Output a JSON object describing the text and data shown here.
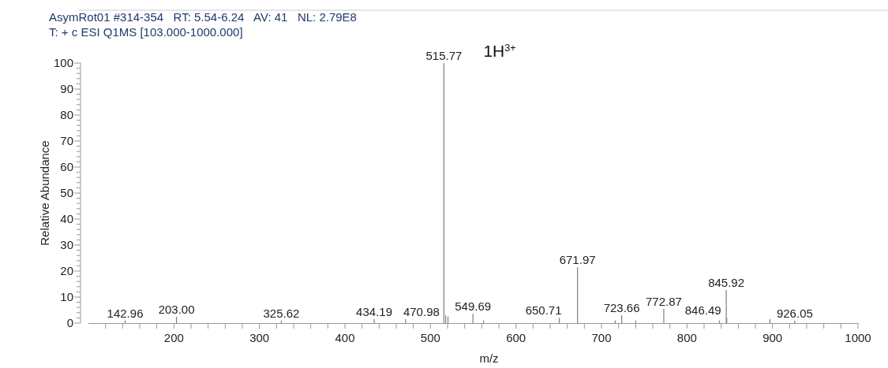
{
  "chart_data": {
    "type": "bar",
    "title": "AsymRot01 #314-354   RT: 5.54-6.24   AV: 41   NL: 2.79E8",
    "subtitle": "T: + c ESI Q1MS [103.000-1000.000]",
    "xlabel": "m/z",
    "ylabel": "Relative Abundance",
    "color": "#7f7f7f",
    "x": [
      142.96,
      203.0,
      325.62,
      434.19,
      470.98,
      515.77,
      517.8,
      520.5,
      549.69,
      562,
      650.71,
      671.97,
      716,
      723.66,
      740,
      772.87,
      838,
      845.92,
      846.49,
      897,
      926.05
    ],
    "values": [
      1,
      2.4,
      1,
      1.5,
      1.5,
      100,
      3,
      2.5,
      3.6,
      1,
      2,
      21.5,
      1,
      3,
      1,
      5.5,
      1,
      12.7,
      2,
      1.5,
      1
    ],
    "xlim": [
      100,
      1000
    ],
    "xticks": [
      {
        "value": 120,
        "label": null
      },
      {
        "value": 140,
        "label": null
      },
      {
        "value": 160,
        "label": null
      },
      {
        "value": 180,
        "label": null
      },
      200,
      {
        "value": 220,
        "label": null
      },
      {
        "value": 240,
        "label": null
      },
      {
        "value": 260,
        "label": null
      },
      {
        "value": 280,
        "label": null
      },
      300,
      {
        "value": 320,
        "label": null
      },
      {
        "value": 340,
        "label": null
      },
      {
        "value": 360,
        "label": null
      },
      {
        "value": 380,
        "label": null
      },
      400,
      {
        "value": 420,
        "label": null
      },
      {
        "value": 440,
        "label": null
      },
      {
        "value": 460,
        "label": null
      },
      {
        "value": 480,
        "label": null
      },
      500,
      {
        "value": 520,
        "label": null
      },
      {
        "value": 540,
        "label": null
      },
      {
        "value": 560,
        "label": null
      },
      {
        "value": 580,
        "label": null
      },
      600,
      {
        "value": 620,
        "label": null
      },
      {
        "value": 640,
        "label": null
      },
      {
        "value": 660,
        "label": null
      },
      {
        "value": 680,
        "label": null
      },
      700,
      {
        "value": 720,
        "label": null
      },
      {
        "value": 740,
        "label": null
      },
      {
        "value": 760,
        "label": null
      },
      {
        "value": 780,
        "label": null
      },
      800,
      {
        "value": 820,
        "label": null
      },
      {
        "value": 840,
        "label": null
      },
      {
        "value": 860,
        "label": null
      },
      {
        "value": 880,
        "label": null
      },
      900,
      {
        "value": 920,
        "label": null
      },
      {
        "value": 940,
        "label": null
      },
      {
        "value": 960,
        "label": null
      },
      {
        "value": 980,
        "label": null
      },
      1000
    ],
    "ylim": [
      0,
      100
    ],
    "yticks": [
      0,
      {
        "value": 2,
        "label": null
      },
      {
        "value": 4,
        "label": null
      },
      {
        "value": 6,
        "label": null
      },
      {
        "value": 8,
        "label": null
      },
      10,
      {
        "value": 12,
        "label": null
      },
      {
        "value": 14,
        "label": null
      },
      {
        "value": 16,
        "label": null
      },
      {
        "value": 18,
        "label": null
      },
      20,
      {
        "value": 22,
        "label": null
      },
      {
        "value": 24,
        "label": null
      },
      {
        "value": 26,
        "label": null
      },
      {
        "value": 28,
        "label": null
      },
      30,
      {
        "value": 32,
        "label": null
      },
      {
        "value": 34,
        "label": null
      },
      {
        "value": 36,
        "label": null
      },
      {
        "value": 38,
        "label": null
      },
      40,
      {
        "value": 42,
        "label": null
      },
      {
        "value": 44,
        "label": null
      },
      {
        "value": 46,
        "label": null
      },
      {
        "value": 48,
        "label": null
      },
      50,
      {
        "value": 52,
        "label": null
      },
      {
        "value": 54,
        "label": null
      },
      {
        "value": 56,
        "label": null
      },
      {
        "value": 58,
        "label": null
      },
      60,
      {
        "value": 62,
        "label": null
      },
      {
        "value": 64,
        "label": null
      },
      {
        "value": 66,
        "label": null
      },
      {
        "value": 68,
        "label": null
      },
      70,
      {
        "value": 72,
        "label": null
      },
      {
        "value": 74,
        "label": null
      },
      {
        "value": 76,
        "label": null
      },
      {
        "value": 78,
        "label": null
      },
      80,
      {
        "value": 82,
        "label": null
      },
      {
        "value": 84,
        "label": null
      },
      {
        "value": 86,
        "label": null
      },
      {
        "value": 88,
        "label": null
      },
      90,
      {
        "value": 92,
        "label": null
      },
      {
        "value": 94,
        "label": null
      },
      {
        "value": 96,
        "label": null
      },
      {
        "value": 98,
        "label": null
      },
      100
    ],
    "annotations": [
      {
        "text": "142.96",
        "x": 142.96,
        "y": 1
      },
      {
        "text": "203.00",
        "x": 203.0,
        "y": 2.4
      },
      {
        "text": "325.62",
        "x": 325.62,
        "y": 1
      },
      {
        "text": "434.19",
        "x": 434.19,
        "y": 1.5
      },
      {
        "text": "470.98",
        "x": 470.98,
        "y": 1.5
      },
      {
        "text": "515.77",
        "x": 515.77,
        "y": 100
      },
      {
        "text": "549.69",
        "x": 549.69,
        "y": 3.6
      },
      {
        "text": "650.71",
        "x": 650.71,
        "y": 2
      },
      {
        "text": "671.97",
        "x": 671.97,
        "y": 21.5
      },
      {
        "text": "723.66",
        "x": 723.66,
        "y": 3
      },
      {
        "text": "772.87",
        "x": 772.87,
        "y": 5.5
      },
      {
        "text": "845.92",
        "x": 845.92,
        "y": 12.7
      },
      {
        "text": "846.49",
        "x": 846.49,
        "y": 2
      },
      {
        "text": "926.05",
        "x": 926.05,
        "y": 1
      },
      "1H$^{3+}$"
    ],
    "grid": false
  }
}
